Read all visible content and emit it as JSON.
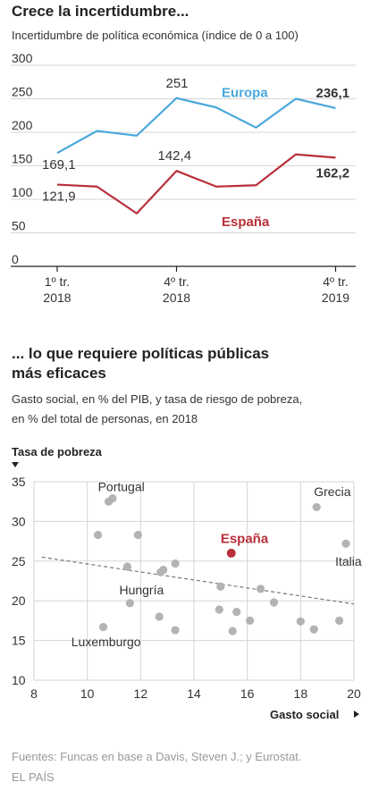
{
  "chart1": {
    "title": "Crece la incertidumbre...",
    "subtitle": "Incertidumbre de política económica (índice de 0 a 100)",
    "chart_data": {
      "type": "line",
      "title": "Crece la incertidumbre...",
      "subtitle": "Incertidumbre de política económica (índice de 0 a 100)",
      "ylim": [
        0,
        300
      ],
      "yticks": [
        "0",
        "50",
        "100",
        "150",
        "200",
        "250",
        "300"
      ],
      "xticks": [
        {
          "index": 0,
          "line1": "1º tr.",
          "line2": "2018"
        },
        {
          "index": 3,
          "line1": "4º tr.",
          "line2": "2018"
        },
        {
          "index": 7,
          "line1": "4º tr.",
          "line2": "2019"
        }
      ],
      "x": [
        0,
        1,
        2,
        3,
        4,
        5,
        6,
        7
      ],
      "series": [
        {
          "name": "Europa",
          "color": "#4aa8dc",
          "values": [
            169.1,
            202,
            195,
            251,
            237,
            207,
            250,
            236.1
          ]
        },
        {
          "name": "España",
          "color": "#b9303a",
          "values": [
            121.9,
            119,
            79,
            142.4,
            119,
            121,
            167,
            162.2
          ]
        }
      ],
      "data_labels": [
        {
          "series": "Europa",
          "index": 0,
          "text": "169,1"
        },
        {
          "series": "Europa",
          "index": 3,
          "text": "251"
        },
        {
          "series": "Europa",
          "index": 7,
          "text": "236,1"
        },
        {
          "series": "España",
          "index": 0,
          "text": "121,9"
        },
        {
          "series": "España",
          "index": 3,
          "text": "142,4"
        },
        {
          "series": "España",
          "index": 7,
          "text": "162,2"
        }
      ],
      "grid": true
    }
  },
  "chart2": {
    "title_line1": "... lo que requiere políticas públicas",
    "title_line2": "más eficaces",
    "subtitle_line1": "Gasto social, en % del PIB, y tasa de riesgo de pobreza,",
    "subtitle_line2": "en % del total de personas, en 2018",
    "chart_data": {
      "type": "scatter",
      "xlabel": "Gasto social",
      "ylabel": "Tasa de pobreza",
      "xlim": [
        8,
        20
      ],
      "ylim": [
        10,
        35
      ],
      "xticks": [
        8,
        10,
        12,
        14,
        16,
        18,
        20
      ],
      "yticks": [
        10,
        15,
        20,
        25,
        30,
        35
      ],
      "trendline": {
        "from": [
          8.3,
          25.5
        ],
        "to": [
          20,
          19.6
        ],
        "style": "dashed"
      },
      "highlight_color": "#b9303a",
      "point_color": "#b3b3b3",
      "points": [
        {
          "x": 10.8,
          "y": 32.5
        },
        {
          "x": 10.95,
          "y": 32.9
        },
        {
          "x": 18.6,
          "y": 31.8
        },
        {
          "x": 10.4,
          "y": 28.3
        },
        {
          "x": 11.9,
          "y": 28.3
        },
        {
          "x": 19.7,
          "y": 27.2
        },
        {
          "x": 15.4,
          "y": 26.0,
          "highlight": true
        },
        {
          "x": 13.3,
          "y": 24.7
        },
        {
          "x": 11.5,
          "y": 24.3
        },
        {
          "x": 12.85,
          "y": 23.9
        },
        {
          "x": 12.75,
          "y": 23.6
        },
        {
          "x": 15.0,
          "y": 21.8
        },
        {
          "x": 16.5,
          "y": 21.5
        },
        {
          "x": 11.6,
          "y": 19.7
        },
        {
          "x": 17.0,
          "y": 19.8
        },
        {
          "x": 14.95,
          "y": 18.9
        },
        {
          "x": 15.6,
          "y": 18.6
        },
        {
          "x": 12.7,
          "y": 18.0
        },
        {
          "x": 16.1,
          "y": 17.5
        },
        {
          "x": 18.0,
          "y": 17.4
        },
        {
          "x": 19.45,
          "y": 17.5
        },
        {
          "x": 10.6,
          "y": 16.7
        },
        {
          "x": 13.3,
          "y": 16.3
        },
        {
          "x": 15.45,
          "y": 16.2
        },
        {
          "x": 18.5,
          "y": 16.4
        }
      ],
      "labels": [
        {
          "text": "Portugal",
          "x": 10.4,
          "y": 33.8
        },
        {
          "text": "Grecia",
          "x": 18.5,
          "y": 33.2
        },
        {
          "text": "España",
          "x": 15.0,
          "y": 27.3,
          "highlight": true
        },
        {
          "text": "Italia",
          "x": 19.3,
          "y": 24.4
        },
        {
          "text": "Hungría",
          "x": 11.2,
          "y": 20.8
        },
        {
          "text": "Luxemburgo",
          "x": 9.4,
          "y": 14.3
        }
      ]
    }
  },
  "footer": {
    "sources": "Fuentes: Funcas en base a  Davis, Steven J.; y Eurostat.",
    "brand": "EL PAÍS"
  },
  "colors": {
    "gridline": "#d6d6d6",
    "axis": "#222222",
    "tick_text": "#333333"
  }
}
